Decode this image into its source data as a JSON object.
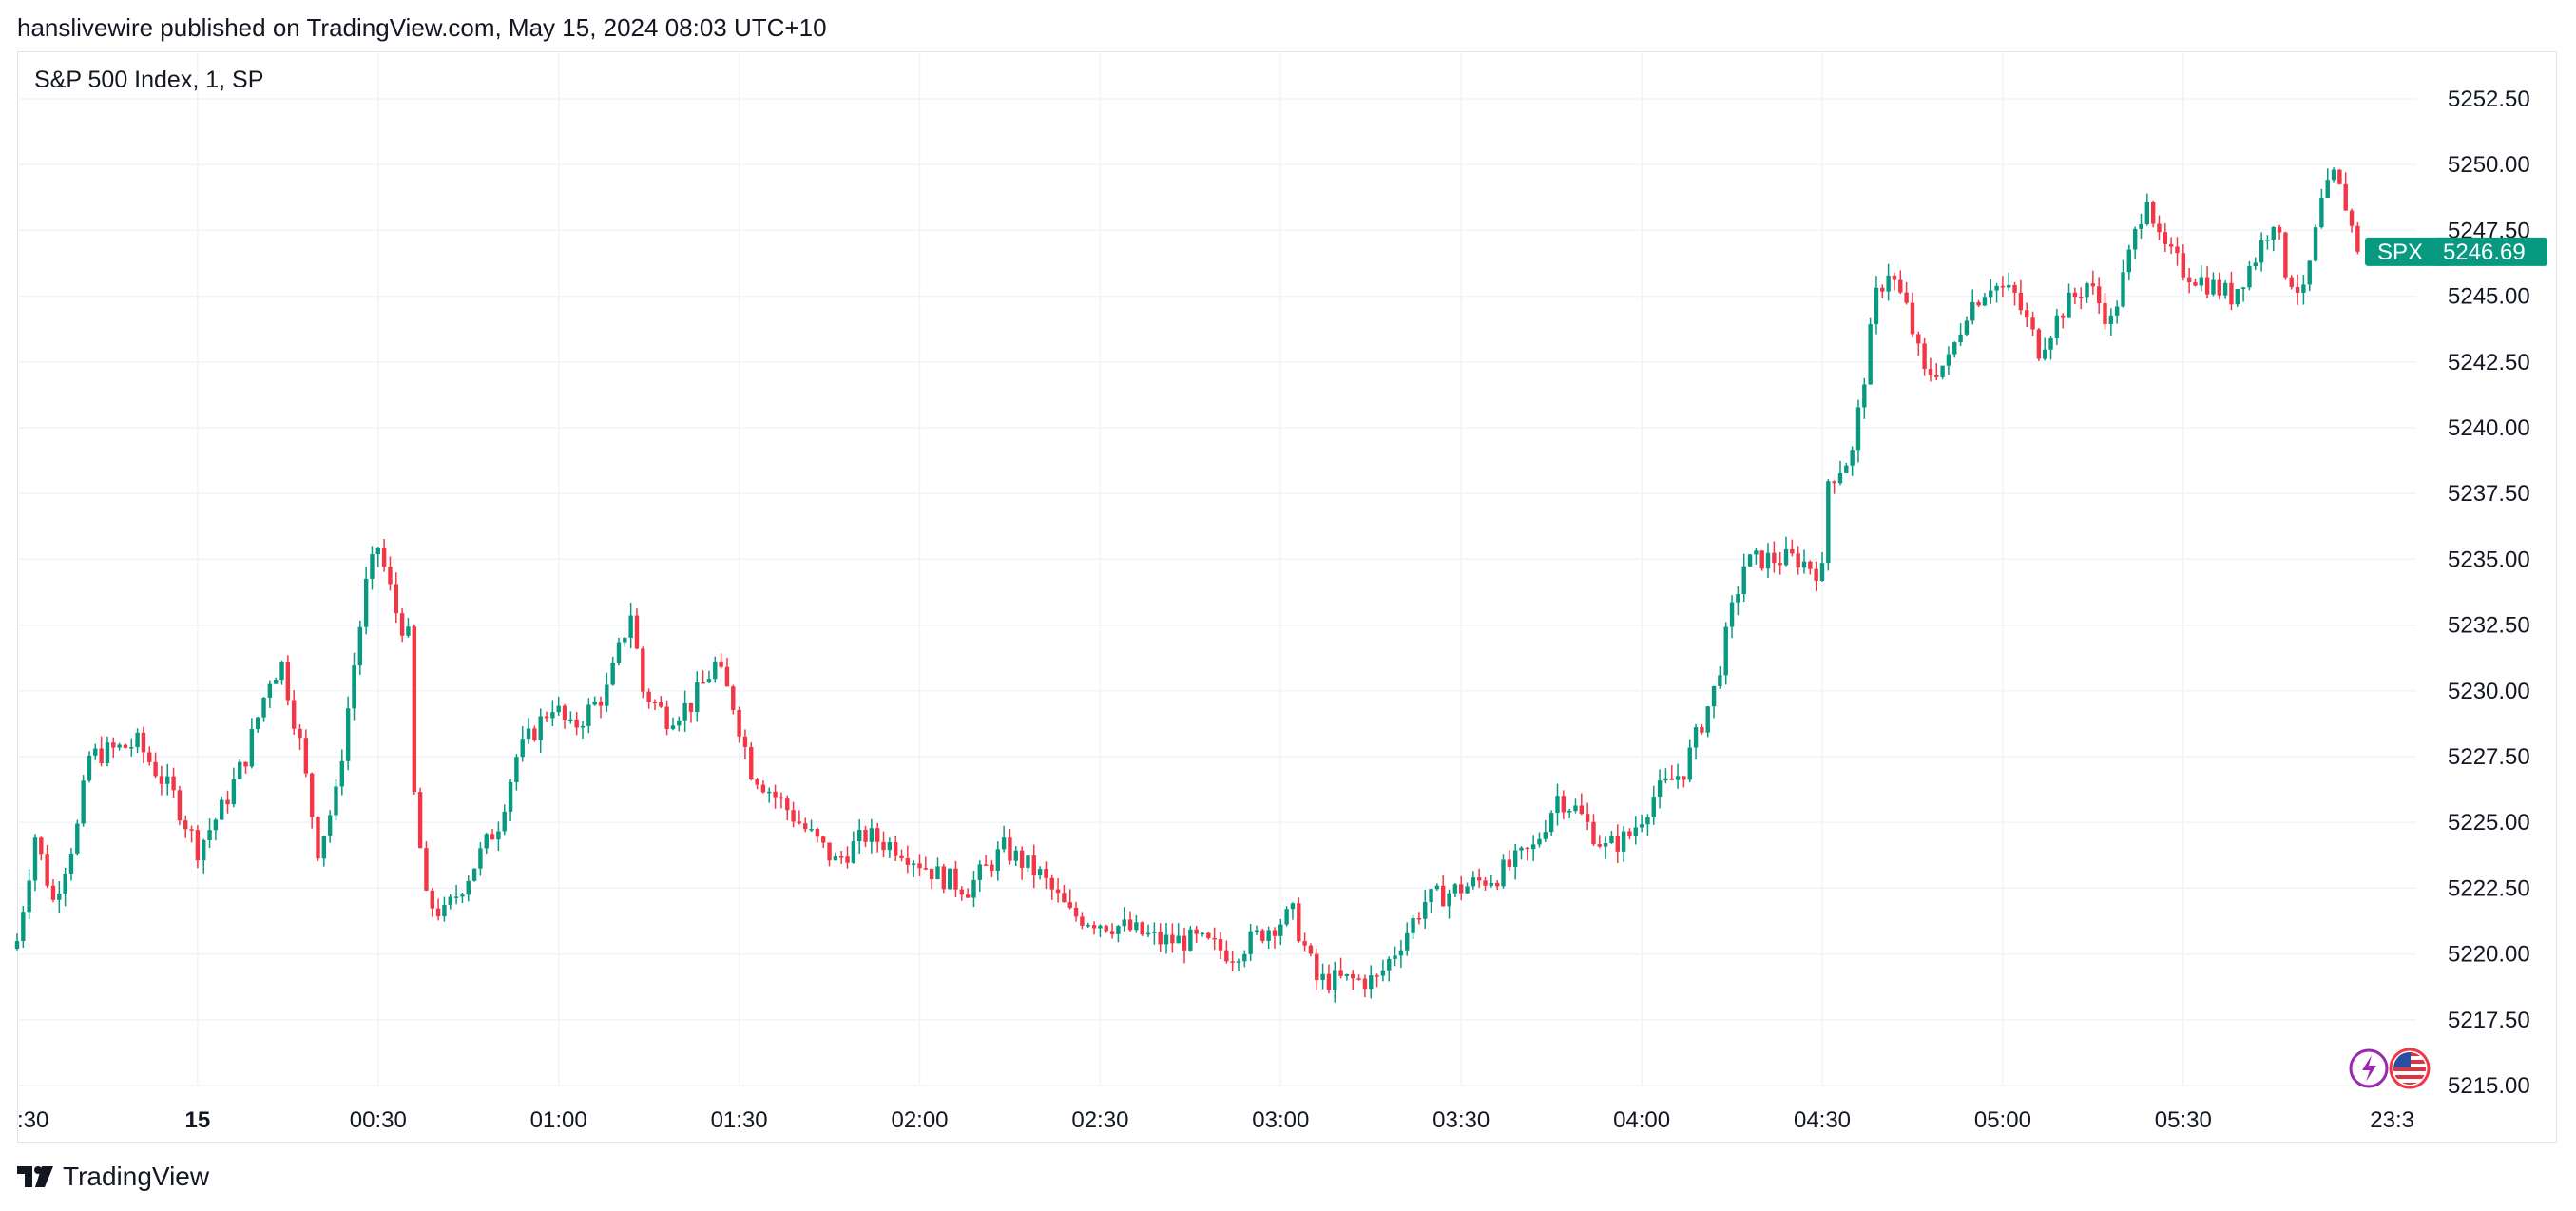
{
  "header": {
    "published_line": "hanslivewire published on TradingView.com, May 15, 2024 08:03 UTC+10"
  },
  "legend": {
    "symbol_line": "S&P 500 Index, 1, SP"
  },
  "footer": {
    "brand": "TradingView"
  },
  "colors": {
    "up": "#089981",
    "down": "#f23645",
    "grid": "#f0f3fa",
    "text": "#131722",
    "badge": "#089981"
  },
  "icons": [
    "tradingview-logo-icon",
    "lightning-icon",
    "us-flag-icon"
  ],
  "chart_data": {
    "type": "candlestick",
    "symbol": "SPX",
    "title": "S&P 500 Index, 1, SP",
    "interval": "1 minute",
    "last_price": 5246.69,
    "last_label": "SPX",
    "last_value_label": "5246.69",
    "y_ticks": [
      "5252.50",
      "5250.00",
      "5247.50",
      "5245.00",
      "5242.50",
      "5240.00",
      "5237.50",
      "5235.00",
      "5232.50",
      "5230.00",
      "5227.50",
      "5225.00",
      "5222.50",
      "5220.00",
      "5217.50",
      "5215.00"
    ],
    "ylim": [
      5215.0,
      5253.5
    ],
    "x_ticks": [
      {
        "label": ":30",
        "minute": 0,
        "bold": false
      },
      {
        "label": "15",
        "minute": 30,
        "bold": true
      },
      {
        "label": "00:30",
        "minute": 60,
        "bold": false
      },
      {
        "label": "01:00",
        "minute": 90,
        "bold": false
      },
      {
        "label": "01:30",
        "minute": 120,
        "bold": false
      },
      {
        "label": "02:00",
        "minute": 150,
        "bold": false
      },
      {
        "label": "02:30",
        "minute": 180,
        "bold": false
      },
      {
        "label": "03:00",
        "minute": 210,
        "bold": false
      },
      {
        "label": "03:30",
        "minute": 240,
        "bold": false
      },
      {
        "label": "04:00",
        "minute": 270,
        "bold": false
      },
      {
        "label": "04:30",
        "minute": 300,
        "bold": false
      },
      {
        "label": "05:00",
        "minute": 330,
        "bold": false
      },
      {
        "label": "05:30",
        "minute": 360,
        "bold": false
      },
      {
        "label": "23:3",
        "minute": 400,
        "bold": false
      }
    ],
    "close_path": [
      [
        0,
        5220.5
      ],
      [
        3,
        5224.5
      ],
      [
        6,
        5222.0
      ],
      [
        10,
        5224.8
      ],
      [
        12,
        5227.5
      ],
      [
        20,
        5228.0
      ],
      [
        26,
        5226.0
      ],
      [
        30,
        5224.0
      ],
      [
        34,
        5225.5
      ],
      [
        38,
        5227.5
      ],
      [
        42,
        5230.5
      ],
      [
        44,
        5231.0
      ],
      [
        47,
        5228.0
      ],
      [
        50,
        5224.0
      ],
      [
        53,
        5226.0
      ],
      [
        56,
        5231.0
      ],
      [
        58,
        5234.0
      ],
      [
        60,
        5235.5
      ],
      [
        63,
        5233.0
      ],
      [
        65,
        5232.0
      ],
      [
        66,
        5226.0
      ],
      [
        68,
        5222.0
      ],
      [
        71,
        5221.5
      ],
      [
        75,
        5223.0
      ],
      [
        80,
        5225.0
      ],
      [
        83,
        5227.5
      ],
      [
        89,
        5229.5
      ],
      [
        92,
        5228.5
      ],
      [
        98,
        5230.0
      ],
      [
        102,
        5233.0
      ],
      [
        104,
        5230.0
      ],
      [
        108,
        5229.0
      ],
      [
        112,
        5229.5
      ],
      [
        116,
        5231.0
      ],
      [
        119,
        5229.5
      ],
      [
        122,
        5227.0
      ],
      [
        126,
        5226.0
      ],
      [
        130,
        5225.0
      ],
      [
        136,
        5223.5
      ],
      [
        141,
        5224.5
      ],
      [
        147,
        5224.0
      ],
      [
        153,
        5223.0
      ],
      [
        158,
        5222.5
      ],
      [
        164,
        5224.0
      ],
      [
        170,
        5223.0
      ],
      [
        175,
        5221.5
      ],
      [
        184,
        5221.0
      ],
      [
        190,
        5220.5
      ],
      [
        196,
        5220.5
      ],
      [
        202,
        5220.0
      ],
      [
        208,
        5221.0
      ],
      [
        212,
        5221.5
      ],
      [
        216,
        5219.0
      ],
      [
        220,
        5219.0
      ],
      [
        226,
        5219.0
      ],
      [
        230,
        5220.5
      ],
      [
        234,
        5222.0
      ],
      [
        240,
        5222.5
      ],
      [
        246,
        5223.0
      ],
      [
        252,
        5224.0
      ],
      [
        256,
        5226.0
      ],
      [
        259,
        5225.5
      ],
      [
        264,
        5224.0
      ],
      [
        268,
        5224.5
      ],
      [
        272,
        5226.0
      ],
      [
        277,
        5227.0
      ],
      [
        282,
        5230.0
      ],
      [
        285,
        5233.0
      ],
      [
        287,
        5234.8
      ],
      [
        290,
        5235.0
      ],
      [
        296,
        5235.0
      ],
      [
        300,
        5234.5
      ],
      [
        301,
        5238.0
      ],
      [
        305,
        5239.0
      ],
      [
        309,
        5245.0
      ],
      [
        311,
        5246.0
      ],
      [
        314,
        5244.5
      ],
      [
        317,
        5242.0
      ],
      [
        321,
        5242.5
      ],
      [
        324,
        5244.5
      ],
      [
        328,
        5245.5
      ],
      [
        332,
        5245.0
      ],
      [
        336,
        5243.0
      ],
      [
        340,
        5244.5
      ],
      [
        344,
        5245.5
      ],
      [
        348,
        5244.0
      ],
      [
        351,
        5246.5
      ],
      [
        354,
        5249.0
      ],
      [
        356,
        5247.0
      ],
      [
        360,
        5246.0
      ],
      [
        364,
        5245.5
      ],
      [
        368,
        5245.0
      ],
      [
        372,
        5246.5
      ],
      [
        375,
        5248.0
      ],
      [
        377,
        5246.0
      ],
      [
        380,
        5245.0
      ],
      [
        383,
        5248.5
      ],
      [
        385,
        5249.5
      ],
      [
        387,
        5248.5
      ],
      [
        389,
        5246.69
      ]
    ]
  }
}
